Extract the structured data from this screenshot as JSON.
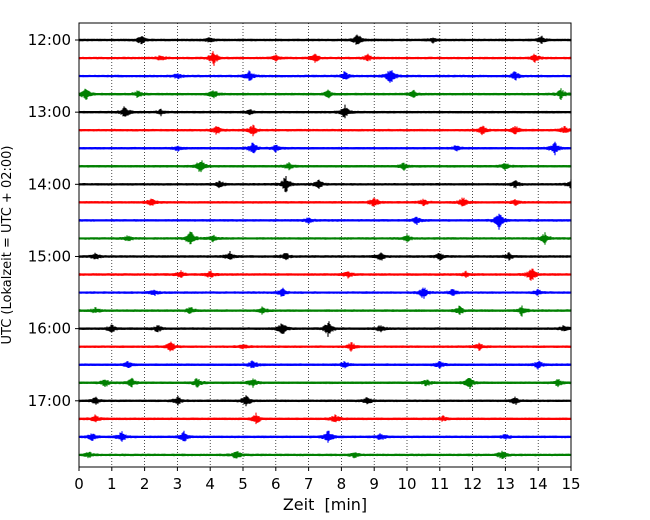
{
  "chart_data": {
    "type": "line",
    "title": "",
    "xlabel": "Zeit  [min]",
    "ylabel": "UTC (Lokalzeit = UTC + 02:00)",
    "xlim": [
      0,
      15
    ],
    "x_ticks": [
      0,
      1,
      2,
      3,
      4,
      5,
      6,
      7,
      8,
      9,
      10,
      11,
      12,
      13,
      14,
      15
    ],
    "x_tick_labels": [
      "0",
      "1",
      "2",
      "3",
      "4",
      "5",
      "6",
      "7",
      "8",
      "9",
      "10",
      "11",
      "12",
      "13",
      "14",
      "15"
    ],
    "y_tick_labels": [
      "12:00",
      "13:00",
      "14:00",
      "15:00",
      "16:00",
      "17:00"
    ],
    "grid": "vertical dotted lines at each minute",
    "legend": "none",
    "trace_colors": [
      "#000000",
      "#ff0000",
      "#0000ff",
      "#008000"
    ],
    "series": [
      {
        "start": "12:00",
        "events": [
          [
            1.9,
            0.5
          ],
          [
            8.5,
            0.7
          ],
          [
            14.1,
            0.4
          ],
          [
            4.0,
            0.3
          ],
          [
            10.8,
            0.3
          ]
        ]
      },
      {
        "start": "12:15",
        "events": [
          [
            4.1,
            0.9
          ],
          [
            7.2,
            0.5
          ],
          [
            8.8,
            0.4
          ],
          [
            13.9,
            0.5
          ],
          [
            2.5,
            0.3
          ],
          [
            6.0,
            0.3
          ]
        ]
      },
      {
        "start": "12:30",
        "events": [
          [
            5.2,
            0.6
          ],
          [
            8.1,
            0.5
          ],
          [
            9.5,
            1.0
          ],
          [
            13.3,
            0.6
          ],
          [
            3.0,
            0.3
          ]
        ]
      },
      {
        "start": "12:45",
        "events": [
          [
            0.2,
            0.7
          ],
          [
            1.8,
            0.4
          ],
          [
            4.1,
            0.5
          ],
          [
            7.6,
            0.4
          ],
          [
            10.2,
            0.4
          ],
          [
            14.7,
            0.6
          ]
        ]
      },
      {
        "start": "13:00",
        "events": [
          [
            1.4,
            0.7
          ],
          [
            8.1,
            0.8
          ],
          [
            2.5,
            0.3
          ],
          [
            5.2,
            0.3
          ]
        ]
      },
      {
        "start": "13:15",
        "events": [
          [
            4.2,
            0.5
          ],
          [
            5.3,
            0.6
          ],
          [
            12.3,
            0.5
          ],
          [
            13.3,
            0.5
          ],
          [
            14.8,
            0.4
          ]
        ]
      },
      {
        "start": "13:30",
        "events": [
          [
            5.3,
            0.7
          ],
          [
            6.0,
            0.4
          ],
          [
            11.5,
            0.3
          ],
          [
            14.5,
            0.8
          ],
          [
            3.0,
            0.3
          ]
        ]
      },
      {
        "start": "13:45",
        "events": [
          [
            3.7,
            0.9
          ],
          [
            6.4,
            0.4
          ],
          [
            9.9,
            0.4
          ],
          [
            13.0,
            0.4
          ]
        ]
      },
      {
        "start": "14:00",
        "events": [
          [
            4.3,
            0.4
          ],
          [
            6.3,
            1.0
          ],
          [
            7.3,
            0.5
          ],
          [
            13.3,
            0.4
          ],
          [
            15.0,
            0.5
          ]
        ]
      },
      {
        "start": "14:15",
        "events": [
          [
            2.2,
            0.5
          ],
          [
            9.0,
            0.6
          ],
          [
            10.5,
            0.4
          ],
          [
            11.7,
            0.6
          ],
          [
            13.3,
            0.3
          ]
        ]
      },
      {
        "start": "14:30",
        "events": [
          [
            10.3,
            0.4
          ],
          [
            12.8,
            1.0
          ],
          [
            7.0,
            0.3
          ]
        ]
      },
      {
        "start": "14:45",
        "events": [
          [
            3.4,
            0.9
          ],
          [
            4.1,
            0.4
          ],
          [
            10.0,
            0.4
          ],
          [
            14.2,
            0.6
          ],
          [
            1.5,
            0.3
          ]
        ]
      },
      {
        "start": "15:00",
        "events": [
          [
            0.5,
            0.4
          ],
          [
            4.6,
            0.5
          ],
          [
            6.3,
            0.4
          ],
          [
            9.2,
            0.5
          ],
          [
            11.0,
            0.4
          ],
          [
            13.1,
            0.4
          ]
        ]
      },
      {
        "start": "15:15",
        "events": [
          [
            3.1,
            0.4
          ],
          [
            4.0,
            0.4
          ],
          [
            8.2,
            0.4
          ],
          [
            13.8,
            0.9
          ],
          [
            11.8,
            0.3
          ]
        ]
      },
      {
        "start": "15:30",
        "events": [
          [
            6.2,
            0.5
          ],
          [
            10.5,
            0.7
          ],
          [
            11.4,
            0.4
          ],
          [
            14.0,
            0.3
          ],
          [
            2.3,
            0.3
          ]
        ]
      },
      {
        "start": "15:45",
        "events": [
          [
            0.5,
            0.3
          ],
          [
            3.4,
            0.4
          ],
          [
            5.6,
            0.4
          ],
          [
            11.6,
            0.5
          ],
          [
            13.5,
            0.6
          ]
        ]
      },
      {
        "start": "16:00",
        "events": [
          [
            1.0,
            0.5
          ],
          [
            2.4,
            0.4
          ],
          [
            6.2,
            0.8
          ],
          [
            7.6,
            0.9
          ],
          [
            9.2,
            0.4
          ],
          [
            14.8,
            0.4
          ]
        ]
      },
      {
        "start": "16:15",
        "events": [
          [
            2.8,
            0.6
          ],
          [
            8.3,
            0.5
          ],
          [
            12.2,
            0.4
          ],
          [
            5.0,
            0.3
          ]
        ]
      },
      {
        "start": "16:30",
        "events": [
          [
            1.5,
            0.4
          ],
          [
            5.3,
            0.5
          ],
          [
            8.1,
            0.4
          ],
          [
            11.0,
            0.4
          ],
          [
            14.0,
            0.5
          ]
        ]
      },
      {
        "start": "16:45",
        "events": [
          [
            0.8,
            0.5
          ],
          [
            1.6,
            0.5
          ],
          [
            3.6,
            0.6
          ],
          [
            5.3,
            0.5
          ],
          [
            10.6,
            0.4
          ],
          [
            11.9,
            0.7
          ],
          [
            14.6,
            0.4
          ]
        ]
      },
      {
        "start": "17:00",
        "events": [
          [
            0.5,
            0.4
          ],
          [
            3.0,
            0.5
          ],
          [
            5.1,
            0.7
          ],
          [
            8.8,
            0.4
          ],
          [
            13.3,
            0.4
          ]
        ]
      },
      {
        "start": "17:15",
        "events": [
          [
            0.5,
            0.4
          ],
          [
            5.4,
            0.6
          ],
          [
            7.8,
            0.5
          ],
          [
            11.1,
            0.3
          ]
        ]
      },
      {
        "start": "17:30",
        "events": [
          [
            0.4,
            0.4
          ],
          [
            1.3,
            0.6
          ],
          [
            3.2,
            0.6
          ],
          [
            7.6,
            0.8
          ],
          [
            9.2,
            0.4
          ],
          [
            13.0,
            0.3
          ]
        ]
      },
      {
        "start": "17:45",
        "events": [
          [
            0.3,
            0.3
          ],
          [
            4.8,
            0.5
          ],
          [
            12.9,
            0.5
          ],
          [
            8.4,
            0.3
          ]
        ]
      }
    ]
  }
}
